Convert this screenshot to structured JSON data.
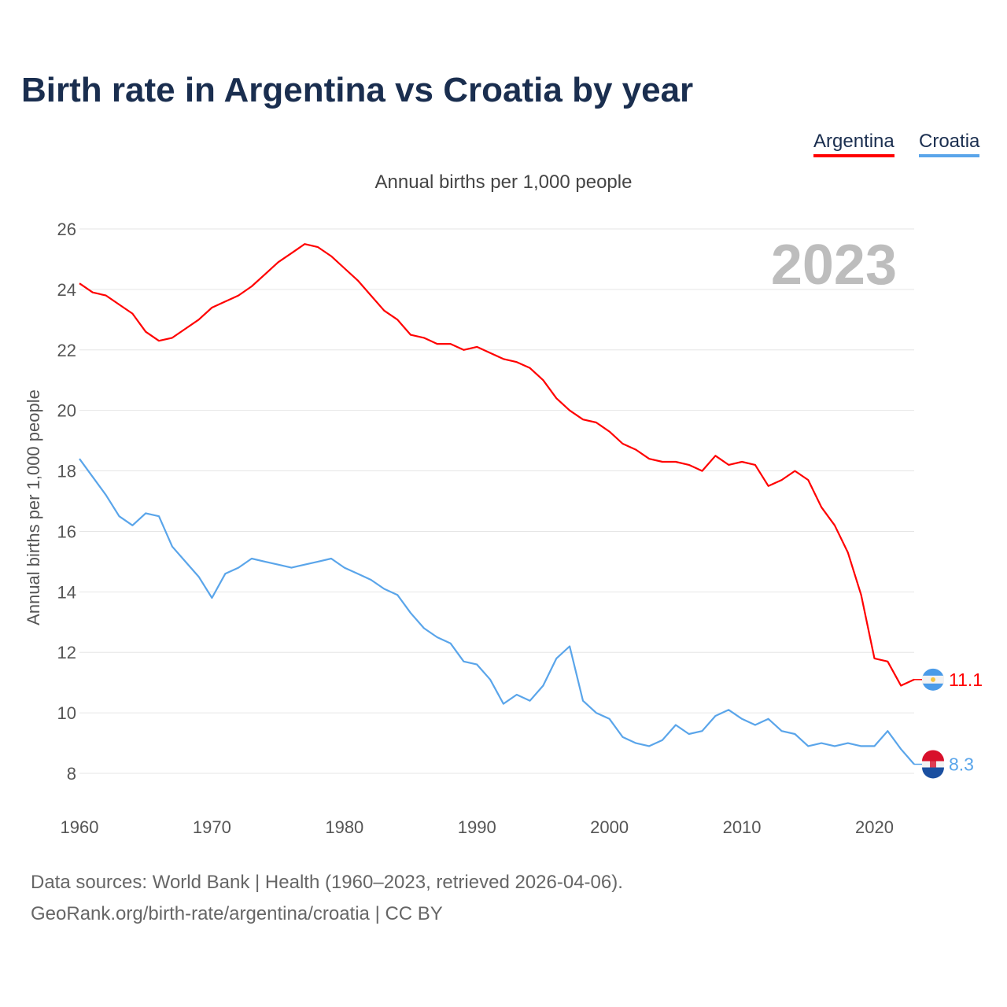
{
  "title": "Birth rate in Argentina vs Croatia by year",
  "legend": [
    {
      "label": "Argentina",
      "color": "#ff0000"
    },
    {
      "label": "Croatia",
      "color": "#5aa5ea"
    }
  ],
  "subtitle": "Annual births per 1,000 people",
  "year_watermark": "2023",
  "footer": {
    "line1": "Data sources: World Bank | Health (1960–2023, retrieved 2026-04-06).",
    "line2": "GeoRank.org/birth-rate/argentina/croatia | CC BY"
  },
  "chart_data": {
    "type": "line",
    "title": "Birth rate in Argentina vs Croatia by year",
    "xlabel": "",
    "ylabel": "Annual births per 1,000 people",
    "xlim": [
      1960,
      2023
    ],
    "ylim": [
      8,
      26
    ],
    "yticks": [
      8,
      10,
      12,
      14,
      16,
      18,
      20,
      22,
      24,
      26
    ],
    "xticks": [
      1960,
      1970,
      1980,
      1990,
      2000,
      2010,
      2020
    ],
    "grid": true,
    "legend_position": "top-right",
    "x_start": 1960,
    "series": [
      {
        "name": "Argentina",
        "color": "#ff0000",
        "end_label": "11.1",
        "values": [
          24.2,
          23.9,
          23.8,
          23.5,
          23.2,
          22.6,
          22.3,
          22.4,
          22.7,
          23.0,
          23.4,
          23.6,
          23.8,
          24.1,
          24.5,
          24.9,
          25.2,
          25.5,
          25.4,
          25.1,
          24.7,
          24.3,
          23.8,
          23.3,
          23.0,
          22.5,
          22.4,
          22.2,
          22.2,
          22.0,
          22.1,
          21.9,
          21.7,
          21.6,
          21.4,
          21.0,
          20.4,
          20.0,
          19.7,
          19.6,
          19.3,
          18.9,
          18.7,
          18.4,
          18.3,
          18.3,
          18.2,
          18.0,
          18.5,
          18.2,
          18.3,
          18.2,
          17.5,
          17.7,
          18.0,
          17.7,
          16.8,
          16.2,
          15.3,
          13.9,
          11.8,
          11.7,
          10.9,
          11.1
        ]
      },
      {
        "name": "Croatia",
        "color": "#5aa5ea",
        "end_label": "8.3",
        "values": [
          18.4,
          17.8,
          17.2,
          16.5,
          16.2,
          16.6,
          16.5,
          15.5,
          15.0,
          14.5,
          13.8,
          14.6,
          14.8,
          15.1,
          15.0,
          14.9,
          14.8,
          14.9,
          15.0,
          15.1,
          14.8,
          14.6,
          14.4,
          14.1,
          13.9,
          13.3,
          12.8,
          12.5,
          12.3,
          11.7,
          11.6,
          11.1,
          10.3,
          10.6,
          10.4,
          10.9,
          11.8,
          12.2,
          10.4,
          10.0,
          9.8,
          9.2,
          9.0,
          8.9,
          9.1,
          9.6,
          9.3,
          9.4,
          9.9,
          10.1,
          9.8,
          9.6,
          9.8,
          9.4,
          9.3,
          8.9,
          9.0,
          8.9,
          9.0,
          8.9,
          8.9,
          9.4,
          8.8,
          8.3
        ]
      }
    ]
  }
}
